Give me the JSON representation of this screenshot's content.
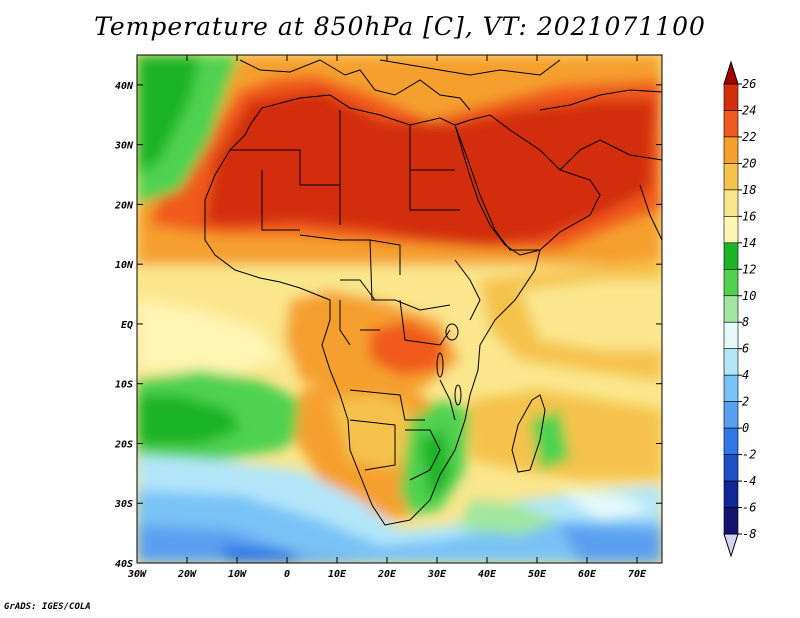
{
  "title": "Temperature at 850hPa [C], VT: 2021071100",
  "footer": "GrADS: IGES/COLA",
  "map": {
    "lon_range": [
      -30,
      75
    ],
    "lat_range": [
      -40,
      45
    ],
    "lon_ticks": [
      "30W",
      "20W",
      "10W",
      "0",
      "10E",
      "20E",
      "30E",
      "40E",
      "50E",
      "60E",
      "70E"
    ],
    "lat_ticks": [
      "40N",
      "30N",
      "20N",
      "10N",
      "EQ",
      "10S",
      "20S",
      "30S",
      "40S"
    ]
  },
  "colorbar": {
    "labels": [
      "26",
      "24",
      "22",
      "20",
      "18",
      "16",
      "14",
      "12",
      "10",
      "8",
      "6",
      "4",
      "2",
      "0",
      "-2",
      "-4",
      "-6",
      "-8"
    ],
    "colors": [
      "#a50000",
      "#d22d0c",
      "#f05a1e",
      "#f5a02d",
      "#f5c34b",
      "#fae68c",
      "#fff5b4",
      "#1eb428",
      "#50d250",
      "#a0e6a0",
      "#e6fafa",
      "#b4e6fa",
      "#78c3f5",
      "#5aa0f0",
      "#2d78e6",
      "#1e50c8",
      "#0f2896",
      "#14146e",
      "#d2d2fa"
    ]
  }
}
